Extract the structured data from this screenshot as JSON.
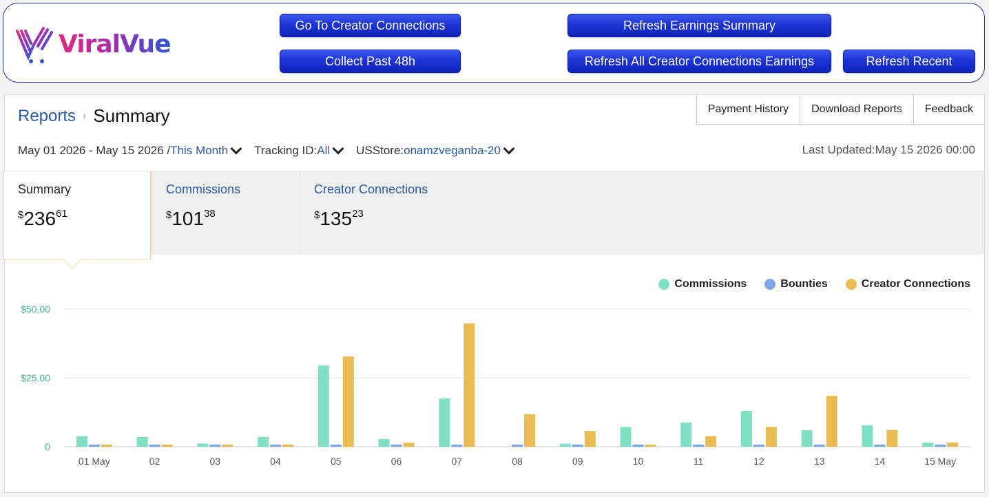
{
  "extension": {
    "brand": "ViralVue",
    "buttons": {
      "go_creator": "Go To Creator Connections",
      "collect_48h": "Collect Past 48h",
      "refresh_summary": "Refresh Earnings Summary",
      "refresh_all": "Refresh All Creator Connections Earnings",
      "refresh_recent": "Refresh Recent"
    }
  },
  "header": {
    "breadcrumb_parent": "Reports",
    "breadcrumb_sep": "›",
    "title": "Summary",
    "actions": [
      "Payment History",
      "Download Reports",
      "Feedback"
    ]
  },
  "filters": {
    "date_range": "May 01 2026 - May 15 2026 /",
    "period": "This Month",
    "tracking_label": "Tracking ID:",
    "tracking_value": "All",
    "store_label": "USStore:",
    "store_value": "onamzveganba-20",
    "last_updated": "Last Updated:May 15 2026 00:00"
  },
  "tabs": [
    {
      "title": "Summary",
      "dollar": "$",
      "amount": "236",
      "cents": "61"
    },
    {
      "title": "Commissions",
      "dollar": "$",
      "amount": "101",
      "cents": "38"
    },
    {
      "title": "Creator Connections",
      "dollar": "$",
      "amount": "135",
      "cents": "23"
    }
  ],
  "colors": {
    "commissions": "#7fe0c4",
    "bounties": "#7fa6e6",
    "creator": "#e8bc52",
    "link": "#2a5aa5"
  },
  "chart_data": {
    "type": "bar",
    "categories": [
      "01 May",
      "02",
      "03",
      "04",
      "05",
      "06",
      "07",
      "08",
      "09",
      "10",
      "11",
      "12",
      "13",
      "14",
      "15 May"
    ],
    "series": [
      {
        "name": "Commissions",
        "values": [
          3.8,
          3.5,
          1.2,
          3.5,
          29.5,
          2.8,
          17.5,
          0,
          1.1,
          7.2,
          8.8,
          13.0,
          6.0,
          7.8,
          1.5
        ]
      },
      {
        "name": "Bounties",
        "values": [
          0.8,
          0.8,
          0.8,
          0.8,
          0.8,
          0.8,
          0.8,
          0.8,
          0.8,
          0.8,
          0.8,
          0.8,
          0.8,
          0.8,
          0.8
        ]
      },
      {
        "name": "Creator Connections",
        "values": [
          0.8,
          0.8,
          0.8,
          0.8,
          32.8,
          1.5,
          44.8,
          11.8,
          5.7,
          0.8,
          3.8,
          7.2,
          18.5,
          6.1,
          1.5
        ]
      }
    ],
    "yticks": [
      "0",
      "$25.00",
      "$50.00"
    ],
    "ytick_values": [
      0,
      25,
      50
    ],
    "ylim": [
      0,
      50
    ],
    "legend_position": "top-right",
    "grid": true
  }
}
